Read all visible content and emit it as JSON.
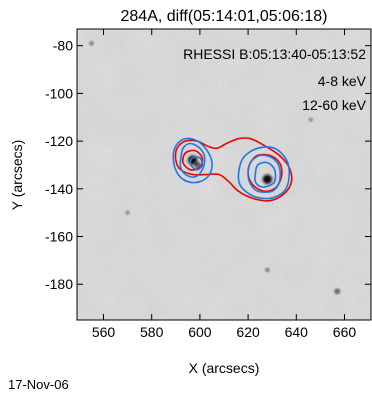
{
  "chart_data": {
    "type": "heatmap",
    "title": "284A, diff(05:14:01,05:06:18)",
    "xlabel": "X (arcsecs)",
    "ylabel": "Y (arcsecs)",
    "xlim": [
      549,
      671
    ],
    "ylim": [
      -195,
      -73
    ],
    "x_ticks": [
      560,
      580,
      600,
      620,
      640,
      660
    ],
    "y_ticks": [
      -80,
      -100,
      -120,
      -140,
      -160,
      -180
    ],
    "grid": false,
    "annotations": {
      "rhessi_time": "RHESSI B:05:13:40-05:13:52",
      "band_low": "4-8 keV",
      "band_high": "12-60 keV"
    },
    "colors": {
      "band_low": "#ee0000",
      "band_high": "#1f77e6"
    },
    "date_label": "17-Nov-06",
    "bright_kernels": [
      {
        "x": 597,
        "y": -128,
        "intensity": 1.0
      },
      {
        "x": 628,
        "y": -136,
        "intensity": 1.0
      },
      {
        "x": 599,
        "y": -130,
        "intensity": 0.6
      },
      {
        "x": 657,
        "y": -183,
        "intensity": 0.5
      },
      {
        "x": 555,
        "y": -79,
        "intensity": 0.35
      },
      {
        "x": 628,
        "y": -174,
        "intensity": 0.35
      },
      {
        "x": 646,
        "y": -111,
        "intensity": 0.3
      },
      {
        "x": 570,
        "y": -150,
        "intensity": 0.3
      }
    ],
    "contours": {
      "band_low": [
        [
          [
            590,
            -128
          ],
          [
            590.5,
            -123
          ],
          [
            594,
            -120
          ],
          [
            599,
            -120
          ],
          [
            603,
            -122
          ],
          [
            607,
            -123
          ],
          [
            611,
            -121
          ],
          [
            616,
            -119
          ],
          [
            621,
            -119
          ],
          [
            627,
            -122
          ],
          [
            633,
            -126
          ],
          [
            637,
            -131
          ],
          [
            638,
            -137
          ],
          [
            635,
            -142
          ],
          [
            629,
            -145
          ],
          [
            622,
            -144
          ],
          [
            616,
            -141
          ],
          [
            612,
            -137
          ],
          [
            608,
            -134
          ],
          [
            603,
            -134
          ],
          [
            597,
            -134
          ],
          [
            592,
            -132
          ]
        ],
        [
          [
            621,
            -129
          ],
          [
            624,
            -126
          ],
          [
            629,
            -126
          ],
          [
            633,
            -129
          ],
          [
            634,
            -134
          ],
          [
            632,
            -139
          ],
          [
            628,
            -141
          ],
          [
            624,
            -140
          ],
          [
            621,
            -137
          ],
          [
            620,
            -133
          ]
        ],
        [
          [
            594,
            -125
          ],
          [
            598,
            -124
          ],
          [
            601,
            -127
          ],
          [
            600,
            -131
          ],
          [
            596,
            -132
          ],
          [
            593,
            -129
          ]
        ]
      ],
      "band_high": [
        [
          [
            589,
            -128
          ],
          [
            590,
            -122
          ],
          [
            594,
            -119
          ],
          [
            599,
            -120
          ],
          [
            603,
            -124
          ],
          [
            605,
            -129
          ],
          [
            604,
            -134
          ],
          [
            600,
            -137
          ],
          [
            595,
            -137
          ],
          [
            591,
            -134
          ]
        ],
        [
          [
            592,
            -128
          ],
          [
            593,
            -123
          ],
          [
            596,
            -121
          ],
          [
            600,
            -123
          ],
          [
            602,
            -127
          ],
          [
            601,
            -132
          ],
          [
            598,
            -135
          ],
          [
            594,
            -134
          ],
          [
            592,
            -131
          ]
        ],
        [
          [
            596,
            -129
          ],
          [
            597,
            -127
          ],
          [
            600,
            -127
          ],
          [
            601,
            -130
          ],
          [
            599,
            -132
          ],
          [
            597,
            -131
          ]
        ],
        [
          [
            616,
            -134
          ],
          [
            618,
            -127
          ],
          [
            624,
            -123
          ],
          [
            631,
            -123
          ],
          [
            636,
            -128
          ],
          [
            637,
            -135
          ],
          [
            635,
            -141
          ],
          [
            629,
            -144
          ],
          [
            622,
            -143
          ],
          [
            617,
            -139
          ]
        ],
        [
          [
            620,
            -134
          ],
          [
            621,
            -129
          ],
          [
            625,
            -126
          ],
          [
            630,
            -127
          ],
          [
            633,
            -131
          ],
          [
            633,
            -137
          ],
          [
            630,
            -141
          ],
          [
            624,
            -141
          ],
          [
            621,
            -138
          ]
        ],
        [
          [
            623,
            -134
          ],
          [
            624,
            -130
          ],
          [
            628,
            -129
          ],
          [
            631,
            -132
          ],
          [
            631,
            -137
          ],
          [
            628,
            -139
          ],
          [
            625,
            -139
          ],
          [
            623,
            -137
          ]
        ]
      ]
    }
  }
}
